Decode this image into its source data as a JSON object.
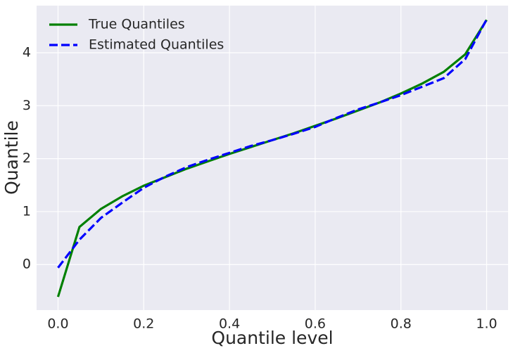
{
  "chart_data": {
    "type": "line",
    "x_label": "Quantile level",
    "y_label": "Quantile",
    "x": [
      0,
      0.05,
      0.1,
      0.15,
      0.2,
      0.25,
      0.3,
      0.35,
      0.4,
      0.45,
      0.5,
      0.55,
      0.6,
      0.65,
      0.7,
      0.75,
      0.8,
      0.85,
      0.9,
      0.95,
      1.0
    ],
    "series": [
      {
        "name": "True Quantiles",
        "color": "#008000",
        "dash": "solid",
        "values": [
          -0.61,
          0.71,
          1.05,
          1.29,
          1.49,
          1.65,
          1.81,
          1.95,
          2.09,
          2.22,
          2.35,
          2.48,
          2.62,
          2.76,
          2.91,
          3.06,
          3.23,
          3.42,
          3.64,
          3.97,
          4.62
        ]
      },
      {
        "name": "Estimated Quantiles",
        "color": "#0000ff",
        "dash": "dashed",
        "values": [
          -0.06,
          0.47,
          0.88,
          1.17,
          1.45,
          1.66,
          1.84,
          1.98,
          2.11,
          2.24,
          2.35,
          2.47,
          2.6,
          2.77,
          2.93,
          3.06,
          3.2,
          3.36,
          3.52,
          3.88,
          4.63
        ]
      }
    ],
    "xlim": [
      -0.05,
      1.05
    ],
    "ylim": [
      -0.86,
      4.89
    ],
    "xticks": [
      {
        "value": 0,
        "label": "0.0"
      },
      0.2,
      0.4,
      0.6,
      0.8,
      {
        "value": 1,
        "label": "1.0"
      }
    ],
    "yticks": [
      0,
      1,
      2,
      3,
      4
    ],
    "grid": true,
    "legend": "upper-left"
  }
}
